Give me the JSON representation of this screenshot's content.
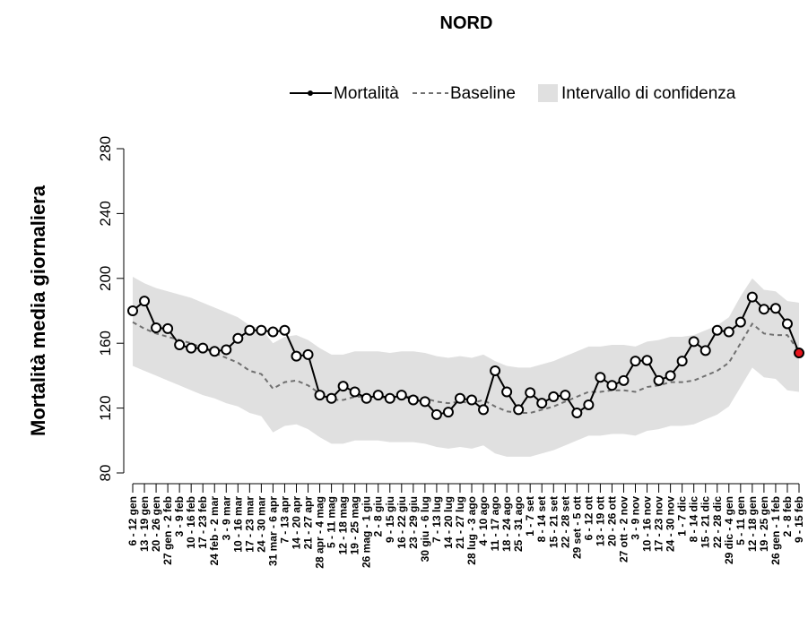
{
  "chart_data": {
    "type": "line",
    "title": "NORD",
    "y_label": "Mortalità media giornaliera",
    "categories": [
      "6 - 12 gen",
      "13 - 19 gen",
      "20 - 26 gen",
      "27 gen - 2 feb",
      "3 - 9 feb",
      "10 - 16 feb",
      "17 - 23 feb",
      "24 feb - 2 mar",
      "3 - 9 mar",
      "10 - 16 mar",
      "17 - 23 mar",
      "24 - 30 mar",
      "31 mar - 6 apr",
      "7 - 13 apr",
      "14 - 20 apr",
      "21 - 27 apr",
      "28 apr - 4 mag",
      "5 - 11 mag",
      "12 - 18 mag",
      "19 - 25 mag",
      "26 mag - 1 giu",
      "2 - 8 giu",
      "9 - 15 giu",
      "16 - 22 giu",
      "23 - 29 giu",
      "30 giu - 6 lug",
      "7 - 13 lug",
      "14 - 20 lug",
      "21 - 27 lug",
      "28 lug - 3 ago",
      "4 - 10 ago",
      "11 - 17 ago",
      "18 - 24 ago",
      "25 - 31 ago",
      "1 - 7 set",
      "8 - 14 set",
      "15 - 21 set",
      "22 - 28 set",
      "29 set - 5 ott",
      "6 - 12 ott",
      "13 - 19 ott",
      "20 - 26 ott",
      "27 ott - 2 nov",
      "3 - 9 nov",
      "10 - 16 nov",
      "17 - 23 nov",
      "24 - 30 nov",
      "1 - 7 dic",
      "8 - 14 dic",
      "15 - 21 dic",
      "22 - 28 dic",
      "29 dic - 4 gen",
      "5 - 11 gen",
      "12 - 18 gen",
      "19 - 25 gen",
      "26 gen - 1 feb",
      "2 - 8 feb",
      "9 - 15 feb"
    ],
    "series": [
      {
        "name": "Mortalità",
        "color": "#000000",
        "values": [
          180,
          186,
          169.5,
          169,
          159,
          157,
          157,
          155,
          156,
          163,
          168,
          168,
          167,
          168,
          152,
          153,
          128,
          126,
          133.5,
          130,
          126,
          128,
          126,
          128,
          125,
          124,
          116,
          117.5,
          126,
          125,
          119,
          143,
          130,
          119,
          129.5,
          123,
          127,
          128,
          117,
          122,
          139,
          134,
          137,
          149,
          149.5,
          137,
          140,
          149,
          161,
          155.5,
          168,
          167,
          173,
          188.5,
          181,
          181.5,
          172,
          154
        ]
      },
      {
        "name": "Baseline",
        "color": "#707070",
        "values": [
          173,
          169,
          166,
          164,
          162,
          160,
          157,
          154,
          151,
          148,
          143,
          141,
          132,
          136,
          137,
          134,
          129,
          125,
          125,
          127,
          127,
          127,
          126,
          127,
          127,
          126,
          124,
          123,
          124,
          123,
          125,
          121,
          118,
          117,
          117,
          119,
          121,
          124,
          127,
          130,
          130,
          131,
          131,
          130,
          133,
          134,
          136,
          136,
          137,
          140,
          143,
          148,
          160,
          172,
          166,
          165,
          165,
          155
        ]
      }
    ],
    "band": {
      "name": "Intervallo di confidenza",
      "color": "#e0e0e0",
      "lower": [
        146,
        143,
        140,
        137,
        134,
        131,
        128,
        126,
        123,
        121,
        117,
        115,
        105,
        109,
        110,
        107,
        102,
        98,
        98,
        100,
        100,
        100,
        99,
        99,
        99,
        98,
        96,
        95,
        96,
        95,
        97,
        92,
        90,
        90,
        90,
        92,
        94,
        97,
        100,
        103,
        103,
        104,
        104,
        103,
        106,
        107,
        109,
        109,
        110,
        113,
        116,
        121,
        133,
        145,
        139,
        138,
        131,
        130
      ],
      "upper": [
        201,
        197,
        194,
        192,
        190,
        188,
        185,
        182,
        179,
        176,
        171,
        169,
        160,
        164,
        165,
        162,
        157,
        153,
        153,
        155,
        155,
        155,
        154,
        155,
        155,
        154,
        152,
        151,
        152,
        151,
        153,
        149,
        146,
        145,
        145,
        147,
        149,
        152,
        155,
        158,
        158,
        159,
        159,
        158,
        161,
        162,
        164,
        164,
        165,
        168,
        171,
        176,
        189,
        200,
        193,
        192,
        186,
        185
      ]
    },
    "last_point_color": "#e8141c",
    "ylim": [
      80,
      280
    ],
    "yticks": [
      80,
      120,
      160,
      200,
      240,
      280
    ]
  }
}
